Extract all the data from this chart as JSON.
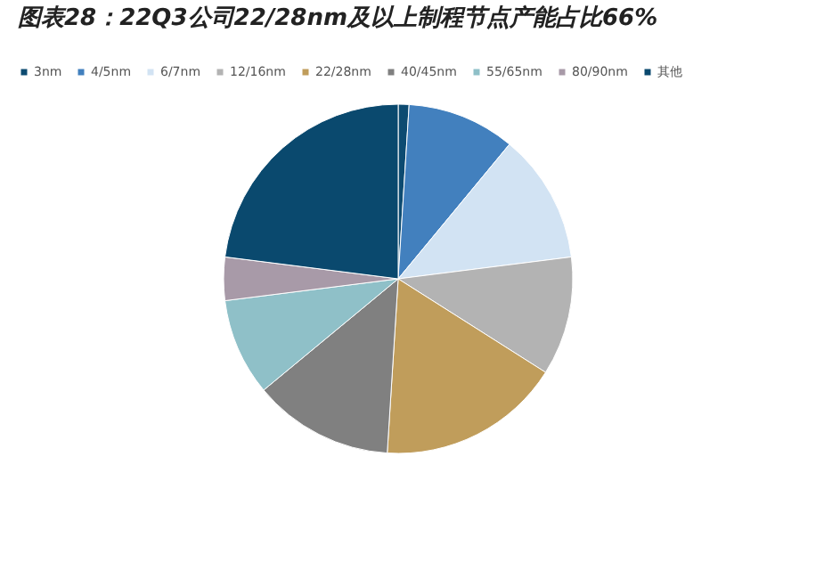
{
  "chart_data": {
    "type": "pie",
    "title": "图表28：22Q3公司22/28nm及以上制程节点产能占比66%",
    "categories": [
      "3nm",
      "4/5nm",
      "6/7nm",
      "12/16nm",
      "22/28nm",
      "40/45nm",
      "55/65nm",
      "80/90nm",
      "其他"
    ],
    "values": [
      1,
      10,
      12,
      11,
      17,
      13,
      9,
      4,
      23
    ],
    "colors": [
      "#0d4b71",
      "#4280be",
      "#d2e3f3",
      "#b3b3b3",
      "#c09d5b",
      "#808080",
      "#8fc0c8",
      "#a89aa8",
      "#0a496e"
    ],
    "legend": "top"
  }
}
